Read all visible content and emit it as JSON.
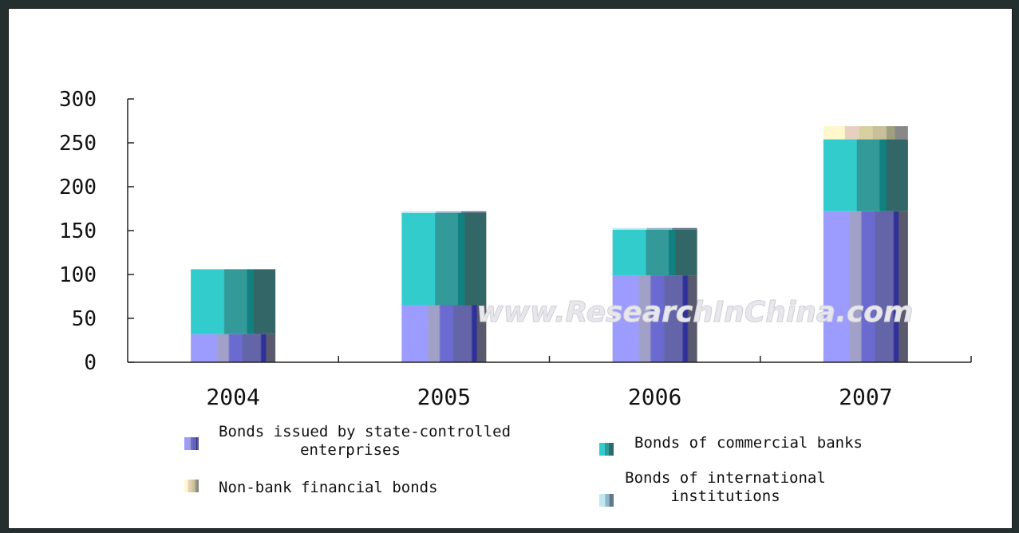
{
  "chart_data": {
    "type": "bar",
    "stacked": true,
    "categories": [
      "2004",
      "2005",
      "2006",
      "2007"
    ],
    "series": [
      {
        "name": "Bonds issued by state-controlled enterprises",
        "values": [
          32,
          65,
          99,
          172
        ],
        "color": "#8f8ff0"
      },
      {
        "name": "Bonds of commercial banks",
        "values": [
          74,
          105,
          52,
          82
        ],
        "color": "#33c8c8"
      },
      {
        "name": "Non-bank financial bonds",
        "values": [
          0,
          0,
          0,
          15
        ],
        "color": "#fff2c8"
      },
      {
        "name": "Bonds of international institutions",
        "values": [
          0,
          2,
          2,
          0
        ],
        "color": "#9cc8d8"
      }
    ],
    "yticks": [
      "0",
      "50",
      "100",
      "150",
      "200",
      "250",
      "300"
    ],
    "ylim": [
      0,
      300
    ],
    "legend_position": "bottom",
    "grid": false,
    "watermark": "www.ResearchInChina.com"
  }
}
